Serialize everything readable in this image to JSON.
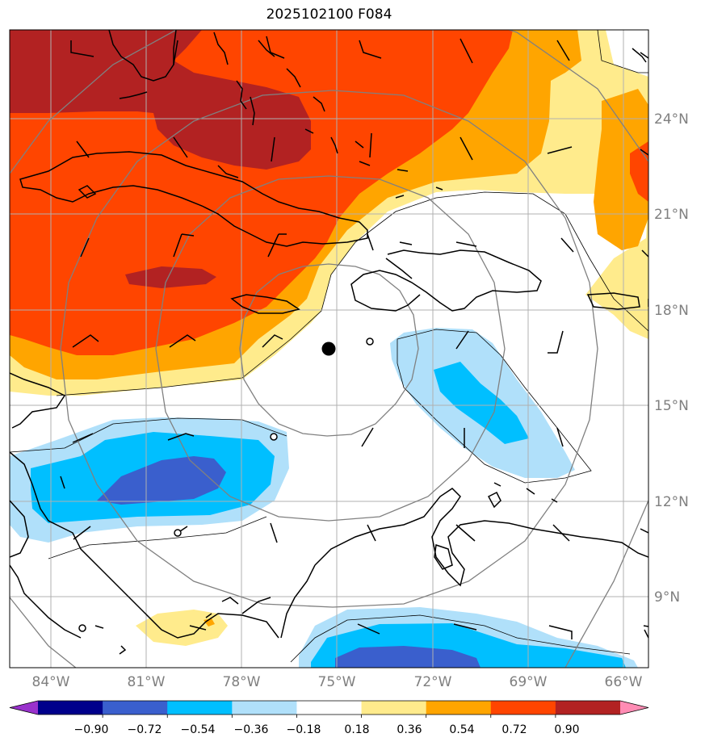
{
  "title": "2025102100 F084",
  "longitude_labels": [
    "84°W",
    "81°W",
    "78°W",
    "75°W",
    "72°W",
    "69°W",
    "66°W"
  ],
  "latitude_labels": [
    "24°N",
    "21°N",
    "18°N",
    "15°N",
    "12°N",
    "9°N"
  ],
  "colorbar": {
    "ticks": [
      "−0.90",
      "−0.72",
      "−0.54",
      "−0.36",
      "−0.18",
      "0.18",
      "0.36",
      "0.54",
      "0.72",
      "0.90"
    ],
    "colors": [
      "#9932cc",
      "#00008b",
      "#3a5fcd",
      "#00bfff",
      "#b0e0fa",
      "#ffffff",
      "#ffeb8c",
      "#ffa500",
      "#ff4500",
      "#b22222",
      "#ff8cb4"
    ]
  },
  "fill_colors": {
    "dark_red": "#b22222",
    "red_orange": "#ff4500",
    "orange": "#ffa500",
    "light_yellow": "#ffeb8c",
    "light_blue": "#b0e0fa",
    "blue": "#00bfff",
    "royal_blue": "#3a5fcd"
  },
  "storm_center": {
    "lon": -75.3,
    "lat": 16.7
  },
  "small_circles": [
    {
      "lon": -74.0,
      "lat": 16.9
    },
    {
      "lon": -77.2,
      "lat": 13.9
    },
    {
      "lon": -80.0,
      "lat": 11.1
    },
    {
      "lon": -83.9,
      "lat": 8.0
    }
  ]
}
